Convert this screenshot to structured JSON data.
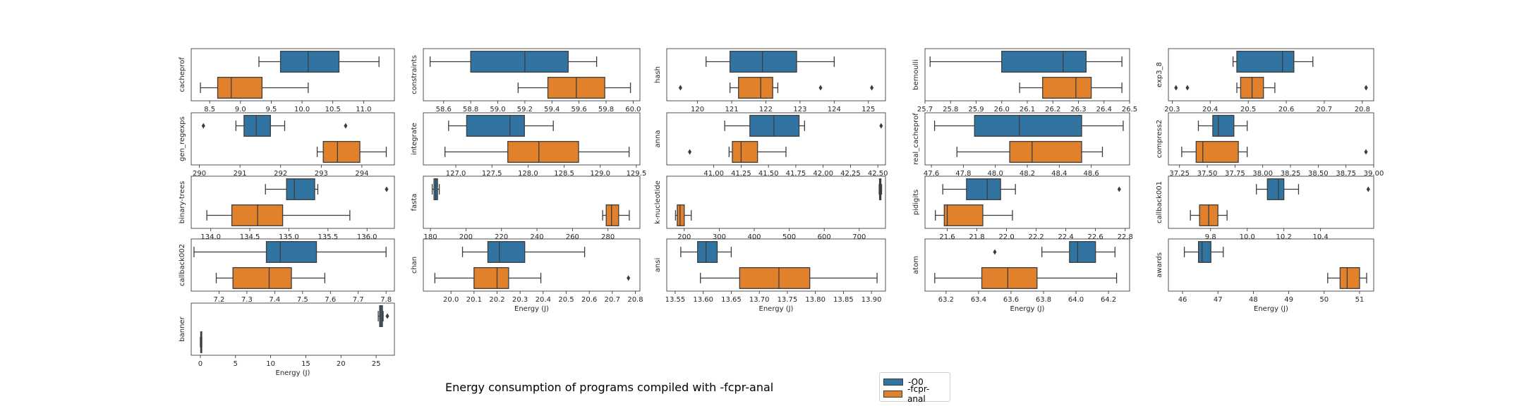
{
  "figure": {
    "title": "Energy consumption of programs compiled with -fcpr-anal",
    "legend": [
      {
        "label": "-O0",
        "color": "#3274a1"
      },
      {
        "label": "-fcpr-anal",
        "color": "#e1812c"
      }
    ]
  },
  "chart_data": [
    {
      "type": "box",
      "name": "cacheprof",
      "xlabel": "",
      "xlim": [
        8.2,
        11.5
      ],
      "ticks": [
        "8.5",
        "9.0",
        "9.5",
        "10.0",
        "10.5",
        "11.0"
      ],
      "boxes": [
        {
          "series": "-O0",
          "whislo": 9.3,
          "q1": 9.65,
          "med": 10.1,
          "q3": 10.6,
          "whishi": 11.25,
          "fliers": []
        },
        {
          "series": "-fcpr-anal",
          "whislo": 8.35,
          "q1": 8.63,
          "med": 8.85,
          "q3": 9.35,
          "whishi": 10.1,
          "fliers": []
        }
      ]
    },
    {
      "type": "box",
      "name": "constraints",
      "xlim": [
        58.45,
        60.05
      ],
      "ticks": [
        "58.6",
        "58.8",
        "59.0",
        "59.2",
        "59.4",
        "59.6",
        "59.8",
        "60.0"
      ],
      "boxes": [
        {
          "series": "-O0",
          "whislo": 58.5,
          "q1": 58.8,
          "med": 59.2,
          "q3": 59.52,
          "whishi": 59.73,
          "fliers": []
        },
        {
          "series": "-fcpr-anal",
          "whislo": 59.15,
          "q1": 59.37,
          "med": 59.58,
          "q3": 59.79,
          "whishi": 59.98,
          "fliers": []
        }
      ]
    },
    {
      "type": "box",
      "name": "hash",
      "xlim": [
        119.1,
        125.5
      ],
      "ticks": [
        "120",
        "121",
        "122",
        "123",
        "124",
        "125"
      ],
      "boxes": [
        {
          "series": "-O0",
          "whislo": 120.25,
          "q1": 120.95,
          "med": 121.9,
          "q3": 122.9,
          "whishi": 124.0,
          "fliers": []
        },
        {
          "series": "-fcpr-anal",
          "whislo": 120.95,
          "q1": 121.2,
          "med": 121.85,
          "q3": 122.2,
          "whishi": 122.35,
          "fliers": [
            119.5,
            123.6,
            125.1
          ]
        }
      ]
    },
    {
      "type": "box",
      "name": "bernoulli",
      "xlim": [
        25.7,
        26.5
      ],
      "ticks": [
        "25.7",
        "25.8",
        "25.9",
        "26.0",
        "26.1",
        "26.2",
        "26.3",
        "26.4",
        "26.5"
      ],
      "boxes": [
        {
          "series": "-O0",
          "whislo": 25.72,
          "q1": 26.0,
          "med": 26.24,
          "q3": 26.33,
          "whishi": 26.47,
          "fliers": []
        },
        {
          "series": "-fcpr-anal",
          "whislo": 26.07,
          "q1": 26.16,
          "med": 26.29,
          "q3": 26.35,
          "whishi": 26.47,
          "fliers": []
        }
      ]
    },
    {
      "type": "box",
      "name": "exp3_8",
      "xlim": [
        20.29,
        20.83
      ],
      "ticks": [
        "20.3",
        "20.4",
        "20.5",
        "20.6",
        "20.7",
        "20.8"
      ],
      "boxes": [
        {
          "series": "-O0",
          "whislo": 20.46,
          "q1": 20.47,
          "med": 20.59,
          "q3": 20.62,
          "whishi": 20.67,
          "fliers": []
        },
        {
          "series": "-fcpr-anal",
          "whislo": 20.47,
          "q1": 20.48,
          "med": 20.51,
          "q3": 20.54,
          "whishi": 20.57,
          "fliers": [
            20.31,
            20.34,
            20.81
          ]
        }
      ]
    },
    {
      "type": "box",
      "name": "gen_regexps",
      "xlim": [
        289.8,
        294.8
      ],
      "ticks": [
        "290",
        "291",
        "292",
        "293",
        "294"
      ],
      "boxes": [
        {
          "series": "-O0",
          "whislo": 290.9,
          "q1": 291.1,
          "med": 291.4,
          "q3": 291.75,
          "whishi": 292.1,
          "fliers": [
            290.1,
            293.6
          ]
        },
        {
          "series": "-fcpr-anal",
          "whislo": 292.9,
          "q1": 293.05,
          "med": 293.4,
          "q3": 293.95,
          "whishi": 294.6,
          "fliers": []
        }
      ]
    },
    {
      "type": "box",
      "name": "integrate",
      "xlim": [
        126.55,
        129.55
      ],
      "ticks": [
        "127.0",
        "127.5",
        "128.0",
        "128.5",
        "129.0",
        "129.5"
      ],
      "boxes": [
        {
          "series": "-O0",
          "whislo": 126.9,
          "q1": 127.15,
          "med": 127.75,
          "q3": 127.95,
          "whishi": 128.35,
          "fliers": []
        },
        {
          "series": "-fcpr-anal",
          "whislo": 126.85,
          "q1": 127.72,
          "med": 128.15,
          "q3": 128.7,
          "whishi": 129.4,
          "fliers": []
        }
      ]
    },
    {
      "type": "box",
      "name": "anna",
      "xlim": [
        40.57,
        42.57
      ],
      "ticks": [
        "41.00",
        "41.25",
        "41.50",
        "41.75",
        "42.00",
        "42.25",
        "42.50"
      ],
      "boxes": [
        {
          "series": "-O0",
          "whislo": 41.1,
          "q1": 41.33,
          "med": 41.55,
          "q3": 41.78,
          "whishi": 41.83,
          "fliers": [
            42.53
          ]
        },
        {
          "series": "-fcpr-anal",
          "whislo": 41.14,
          "q1": 41.17,
          "med": 41.25,
          "q3": 41.4,
          "whishi": 41.66,
          "fliers": [
            40.78
          ]
        }
      ]
    },
    {
      "type": "box",
      "name": "real_cacheprof",
      "xlim": [
        47.56,
        48.84
      ],
      "ticks": [
        "47.6",
        "47.8",
        "48.0",
        "48.2",
        "48.4",
        "48.6"
      ],
      "boxes": [
        {
          "series": "-O0",
          "whislo": 47.62,
          "q1": 47.87,
          "med": 48.15,
          "q3": 48.54,
          "whishi": 48.8,
          "fliers": []
        },
        {
          "series": "-fcpr-anal",
          "whislo": 47.76,
          "q1": 48.09,
          "med": 48.23,
          "q3": 48.54,
          "whishi": 48.67,
          "fliers": []
        }
      ]
    },
    {
      "type": "box",
      "name": "compress2",
      "xlim": [
        37.15,
        39.0
      ],
      "ticks": [
        "37.25",
        "37.50",
        "37.75",
        "38.00",
        "38.25",
        "38.50",
        "38.75",
        "39.00"
      ],
      "boxes": [
        {
          "series": "-O0",
          "whislo": 37.42,
          "q1": 37.55,
          "med": 37.6,
          "q3": 37.74,
          "whishi": 37.86,
          "fliers": []
        },
        {
          "series": "-fcpr-anal",
          "whislo": 37.27,
          "q1": 37.4,
          "med": 37.46,
          "q3": 37.78,
          "whishi": 37.86,
          "fliers": [
            38.93
          ]
        }
      ]
    },
    {
      "type": "box",
      "name": "binary-trees",
      "xlim": [
        133.75,
        136.35
      ],
      "ticks": [
        "134.0",
        "134.5",
        "135.0",
        "135.5",
        "136.0"
      ],
      "boxes": [
        {
          "series": "-O0",
          "whislo": 134.7,
          "q1": 134.97,
          "med": 135.07,
          "q3": 135.33,
          "whishi": 135.37,
          "fliers": [
            136.25
          ]
        },
        {
          "series": "-fcpr-anal",
          "whislo": 133.95,
          "q1": 134.27,
          "med": 134.6,
          "q3": 134.92,
          "whishi": 135.78,
          "fliers": []
        }
      ]
    },
    {
      "type": "box",
      "name": "fasta",
      "xlim": [
        176,
        298
      ],
      "ticks": [
        "180",
        "200",
        "220",
        "240",
        "260",
        "280"
      ],
      "boxes": [
        {
          "series": "-O0",
          "whislo": 181,
          "q1": 182,
          "med": 183,
          "q3": 184,
          "whishi": 185,
          "fliers": []
        },
        {
          "series": "-fcpr-anal",
          "whislo": 277,
          "q1": 279,
          "med": 282,
          "q3": 286,
          "whishi": 292,
          "fliers": []
        }
      ]
    },
    {
      "type": "box",
      "name": "k-nucleotide",
      "xlim": [
        150,
        775
      ],
      "ticks": [
        "200",
        "300",
        "400",
        "500",
        "600",
        "700"
      ],
      "boxes": [
        {
          "series": "-O0",
          "whislo": 757,
          "q1": 758,
          "med": 760,
          "q3": 762,
          "whishi": 764,
          "fliers": []
        },
        {
          "series": "-fcpr-anal",
          "whislo": 175,
          "q1": 180,
          "med": 188,
          "q3": 200,
          "whishi": 220,
          "fliers": []
        }
      ]
    },
    {
      "type": "box",
      "name": "pidigits",
      "xlim": [
        21.45,
        22.83
      ],
      "ticks": [
        "21.6",
        "21.8",
        "22.0",
        "22.2",
        "22.4",
        "22.6",
        "22.8"
      ],
      "boxes": [
        {
          "series": "-O0",
          "whislo": 21.57,
          "q1": 21.73,
          "med": 21.87,
          "q3": 21.96,
          "whishi": 22.06,
          "fliers": [
            22.76
          ]
        },
        {
          "series": "-fcpr-anal",
          "whislo": 21.52,
          "q1": 21.58,
          "med": 21.6,
          "q3": 21.84,
          "whishi": 22.04,
          "fliers": []
        }
      ]
    },
    {
      "type": "box",
      "name": "callback001",
      "xlim": [
        9.57,
        10.69
      ],
      "ticks": [
        "9.8",
        "10.0",
        "10.2",
        "10.4"
      ],
      "boxes": [
        {
          "series": "-O0",
          "whislo": 10.05,
          "q1": 10.11,
          "med": 10.17,
          "q3": 10.2,
          "whishi": 10.28,
          "fliers": [
            10.66
          ]
        },
        {
          "series": "-fcpr-anal",
          "whislo": 9.69,
          "q1": 9.74,
          "med": 9.79,
          "q3": 9.84,
          "whishi": 9.89,
          "fliers": []
        }
      ]
    },
    {
      "type": "box",
      "name": "callback002",
      "xlim": [
        7.1,
        7.83
      ],
      "ticks": [
        "7.2",
        "7.3",
        "7.4",
        "7.5",
        "7.6",
        "7.7",
        "7.8"
      ],
      "boxes": [
        {
          "series": "-O0",
          "whislo": 7.11,
          "q1": 7.37,
          "med": 7.42,
          "q3": 7.55,
          "whishi": 7.8,
          "fliers": []
        },
        {
          "series": "-fcpr-anal",
          "whislo": 7.19,
          "q1": 7.25,
          "med": 7.38,
          "q3": 7.46,
          "whishi": 7.58,
          "fliers": []
        }
      ]
    },
    {
      "type": "box",
      "name": "chan",
      "xlim": [
        19.88,
        20.82
      ],
      "ticks": [
        "20.0",
        "20.1",
        "20.2",
        "20.3",
        "20.4",
        "20.5",
        "20.6",
        "20.7",
        "20.8"
      ],
      "boxes": [
        {
          "series": "-O0",
          "whislo": 20.05,
          "q1": 20.16,
          "med": 20.21,
          "q3": 20.32,
          "whishi": 20.58,
          "fliers": []
        },
        {
          "series": "-fcpr-anal",
          "whislo": 19.93,
          "q1": 20.1,
          "med": 20.2,
          "q3": 20.25,
          "whishi": 20.39,
          "fliers": [
            20.77
          ]
        }
      ]
    },
    {
      "type": "box",
      "name": "ansi",
      "xlim": [
        13.535,
        13.925
      ],
      "ticks": [
        "13.55",
        "13.60",
        "13.65",
        "13.70",
        "13.75",
        "13.80",
        "13.85",
        "13.90"
      ],
      "boxes": [
        {
          "series": "-O0",
          "whislo": 13.56,
          "q1": 13.59,
          "med": 13.605,
          "q3": 13.625,
          "whishi": 13.65,
          "fliers": []
        },
        {
          "series": "-fcpr-anal",
          "whislo": 13.595,
          "q1": 13.665,
          "med": 13.735,
          "q3": 13.79,
          "whishi": 13.91,
          "fliers": []
        }
      ]
    },
    {
      "type": "box",
      "name": "atom",
      "xlim": [
        63.07,
        64.33
      ],
      "ticks": [
        "63.2",
        "63.4",
        "63.6",
        "63.8",
        "64.0",
        "64.2"
      ],
      "boxes": [
        {
          "series": "-O0",
          "whislo": 63.79,
          "q1": 63.96,
          "med": 64.01,
          "q3": 64.12,
          "whishi": 64.24,
          "fliers": [
            63.5
          ]
        },
        {
          "series": "-fcpr-anal",
          "whislo": 63.13,
          "q1": 63.42,
          "med": 63.58,
          "q3": 63.76,
          "whishi": 64.25,
          "fliers": []
        }
      ]
    },
    {
      "type": "box",
      "name": "awards",
      "xlim": [
        45.6,
        51.4
      ],
      "ticks": [
        "46",
        "47",
        "48",
        "49",
        "50",
        "51"
      ],
      "boxes": [
        {
          "series": "-O0",
          "whislo": 46.05,
          "q1": 46.45,
          "med": 46.55,
          "q3": 46.8,
          "whishi": 47.15,
          "fliers": []
        },
        {
          "series": "-fcpr-anal",
          "whislo": 50.1,
          "q1": 50.45,
          "med": 50.65,
          "q3": 51.0,
          "whishi": 51.2,
          "fliers": []
        }
      ]
    },
    {
      "type": "box",
      "name": "banner",
      "xlim": [
        -1.3,
        27.6
      ],
      "ticks": [
        "0",
        "5",
        "10",
        "15",
        "20",
        "25"
      ],
      "boxes": [
        {
          "series": "-O0",
          "whislo": 25.3,
          "q1": 25.5,
          "med": 25.7,
          "q3": 25.9,
          "whishi": 26.0,
          "fliers": [
            26.6
          ]
        },
        {
          "series": "-fcpr-anal",
          "whislo": 0.0,
          "q1": 0.05,
          "med": 0.1,
          "q3": 0.15,
          "whishi": 0.2,
          "fliers": []
        }
      ]
    }
  ],
  "xlabel": "Energy (J)"
}
